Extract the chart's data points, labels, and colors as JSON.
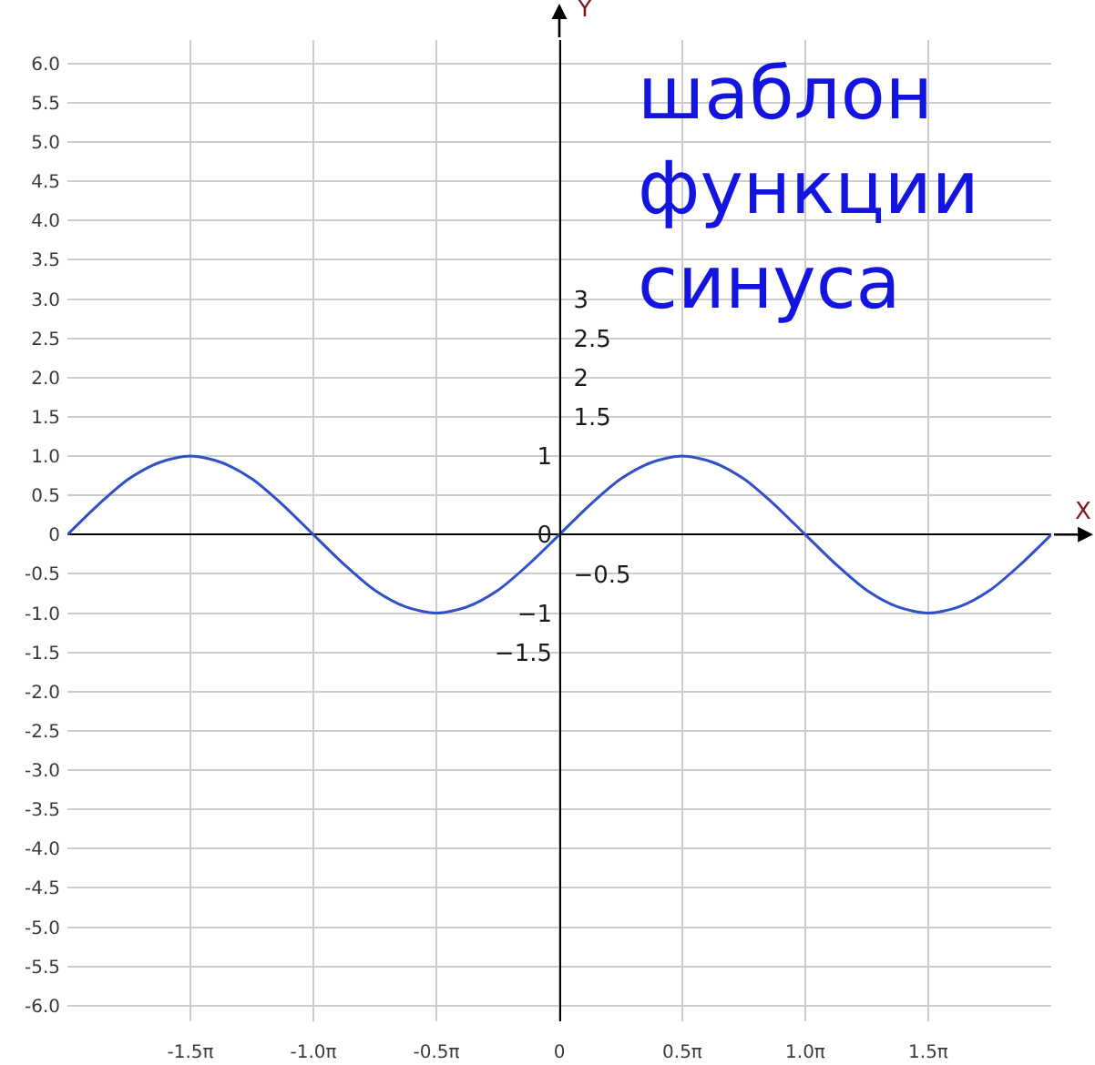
{
  "chart_data": {
    "type": "line",
    "title": "шаблон функции синуса",
    "xlabel": "X",
    "y2label": "Y",
    "categories": [
      null,
      null,
      null,
      null,
      "-1.5π",
      null,
      null,
      null,
      "-1.0π",
      null,
      null,
      null,
      "-0.5π",
      null,
      null,
      null,
      "0",
      null,
      null,
      null,
      "0.5π",
      null,
      null,
      null,
      "1.0π",
      null,
      null,
      null,
      "1.5π",
      null,
      null,
      null,
      null
    ],
    "series": [
      {
        "color": "#3050c8",
        "values": [
          0,
          0.38,
          0.71,
          0.92,
          1,
          0.92,
          0.71,
          0.38,
          0,
          -0.38,
          -0.71,
          -0.92,
          -1,
          -0.92,
          -0.71,
          -0.38,
          0,
          0.38,
          0.71,
          0.92,
          1,
          0.92,
          0.71,
          0.38,
          0,
          -0.38,
          -0.71,
          -0.92,
          -1,
          -0.92,
          -0.71,
          -0.38,
          0
        ]
      }
    ],
    "ylim": [
      -6.2,
      6.3
    ],
    "yticks": [
      {
        "value": 6,
        "label": "6.0"
      },
      5.5,
      {
        "value": 5,
        "label": "5.0"
      },
      4.5,
      {
        "value": 4,
        "label": "4.0"
      },
      3.5,
      {
        "value": 3,
        "label": "3.0"
      },
      2.5,
      {
        "value": 2,
        "label": "2.0"
      },
      1.5,
      {
        "value": 1,
        "label": "1.0"
      },
      0.5,
      0,
      -0.5,
      {
        "value": -1,
        "label": "-1.0"
      },
      -1.5,
      {
        "value": -2,
        "label": "-2.0"
      },
      -2.5,
      {
        "value": -3,
        "label": "-3.0"
      },
      -3.5,
      {
        "value": -4,
        "label": "-4.0"
      },
      -4.5,
      {
        "value": -5,
        "label": "-5.0"
      },
      -5.5,
      {
        "value": -6,
        "label": "-6.0"
      }
    ],
    "y2lim": [
      -6.2,
      6.3
    ],
    "y2ticks": [
      3,
      2.5,
      2,
      1.5,
      {
        "value": -0.5,
        "label": "−0.5"
      }
    ],
    "y3lim": [
      -6.2,
      6.3
    ],
    "y3ticks": [
      1,
      0,
      {
        "value": -1,
        "label": "−1"
      },
      {
        "value": -1.5,
        "label": "−1.5"
      }
    ],
    "grid": true,
    "marker": "none",
    "line_style": "solid"
  }
}
